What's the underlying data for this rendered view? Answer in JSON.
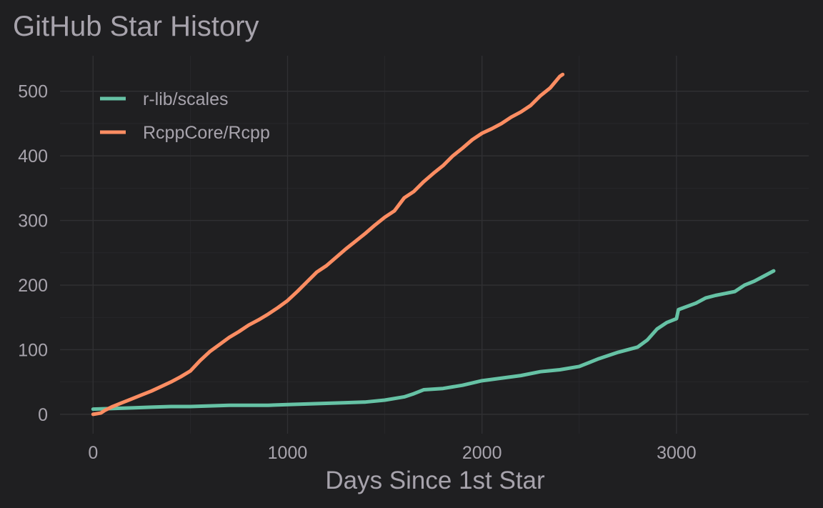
{
  "chart_data": {
    "type": "line",
    "title": "GitHub Star History",
    "xlabel": "Days Since 1st Star",
    "ylabel": "",
    "xlim": [
      -170,
      3680
    ],
    "ylim": [
      -30,
      555
    ],
    "xticks": [
      0,
      1000,
      2000,
      3000
    ],
    "yticks": [
      0,
      100,
      200,
      300,
      400,
      500
    ],
    "grid": true,
    "legend_position": "top-left",
    "series": [
      {
        "name": "r-lib/scales",
        "color": "#66c2a5",
        "points": [
          [
            0,
            8
          ],
          [
            100,
            9
          ],
          [
            200,
            10
          ],
          [
            300,
            11
          ],
          [
            400,
            12
          ],
          [
            500,
            12
          ],
          [
            600,
            13
          ],
          [
            700,
            14
          ],
          [
            800,
            14
          ],
          [
            900,
            14
          ],
          [
            1000,
            15
          ],
          [
            1100,
            16
          ],
          [
            1200,
            17
          ],
          [
            1300,
            18
          ],
          [
            1400,
            19
          ],
          [
            1500,
            22
          ],
          [
            1600,
            27
          ],
          [
            1650,
            32
          ],
          [
            1700,
            38
          ],
          [
            1800,
            40
          ],
          [
            1900,
            45
          ],
          [
            2000,
            52
          ],
          [
            2100,
            56
          ],
          [
            2200,
            60
          ],
          [
            2300,
            66
          ],
          [
            2400,
            69
          ],
          [
            2500,
            74
          ],
          [
            2550,
            80
          ],
          [
            2600,
            86
          ],
          [
            2700,
            96
          ],
          [
            2800,
            104
          ],
          [
            2850,
            115
          ],
          [
            2900,
            132
          ],
          [
            2950,
            142
          ],
          [
            3000,
            148
          ],
          [
            3010,
            162
          ],
          [
            3100,
            172
          ],
          [
            3150,
            180
          ],
          [
            3200,
            184
          ],
          [
            3300,
            190
          ],
          [
            3350,
            200
          ],
          [
            3400,
            206
          ],
          [
            3450,
            214
          ],
          [
            3500,
            222
          ]
        ]
      },
      {
        "name": "RcppCore/Rcpp",
        "color": "#fc8d62",
        "points": [
          [
            0,
            0
          ],
          [
            40,
            2
          ],
          [
            60,
            6
          ],
          [
            100,
            12
          ],
          [
            150,
            18
          ],
          [
            200,
            24
          ],
          [
            250,
            30
          ],
          [
            300,
            36
          ],
          [
            350,
            43
          ],
          [
            400,
            50
          ],
          [
            450,
            58
          ],
          [
            500,
            67
          ],
          [
            550,
            83
          ],
          [
            600,
            97
          ],
          [
            650,
            108
          ],
          [
            700,
            119
          ],
          [
            750,
            128
          ],
          [
            800,
            138
          ],
          [
            850,
            146
          ],
          [
            900,
            155
          ],
          [
            950,
            165
          ],
          [
            1000,
            176
          ],
          [
            1050,
            190
          ],
          [
            1100,
            205
          ],
          [
            1150,
            220
          ],
          [
            1200,
            230
          ],
          [
            1250,
            243
          ],
          [
            1300,
            256
          ],
          [
            1350,
            268
          ],
          [
            1400,
            280
          ],
          [
            1450,
            293
          ],
          [
            1500,
            305
          ],
          [
            1550,
            315
          ],
          [
            1600,
            335
          ],
          [
            1650,
            345
          ],
          [
            1700,
            360
          ],
          [
            1750,
            373
          ],
          [
            1800,
            385
          ],
          [
            1850,
            400
          ],
          [
            1900,
            412
          ],
          [
            1950,
            425
          ],
          [
            2000,
            435
          ],
          [
            2050,
            442
          ],
          [
            2100,
            450
          ],
          [
            2150,
            460
          ],
          [
            2200,
            468
          ],
          [
            2250,
            478
          ],
          [
            2300,
            493
          ],
          [
            2350,
            505
          ],
          [
            2400,
            523
          ],
          [
            2415,
            526
          ]
        ]
      }
    ]
  }
}
